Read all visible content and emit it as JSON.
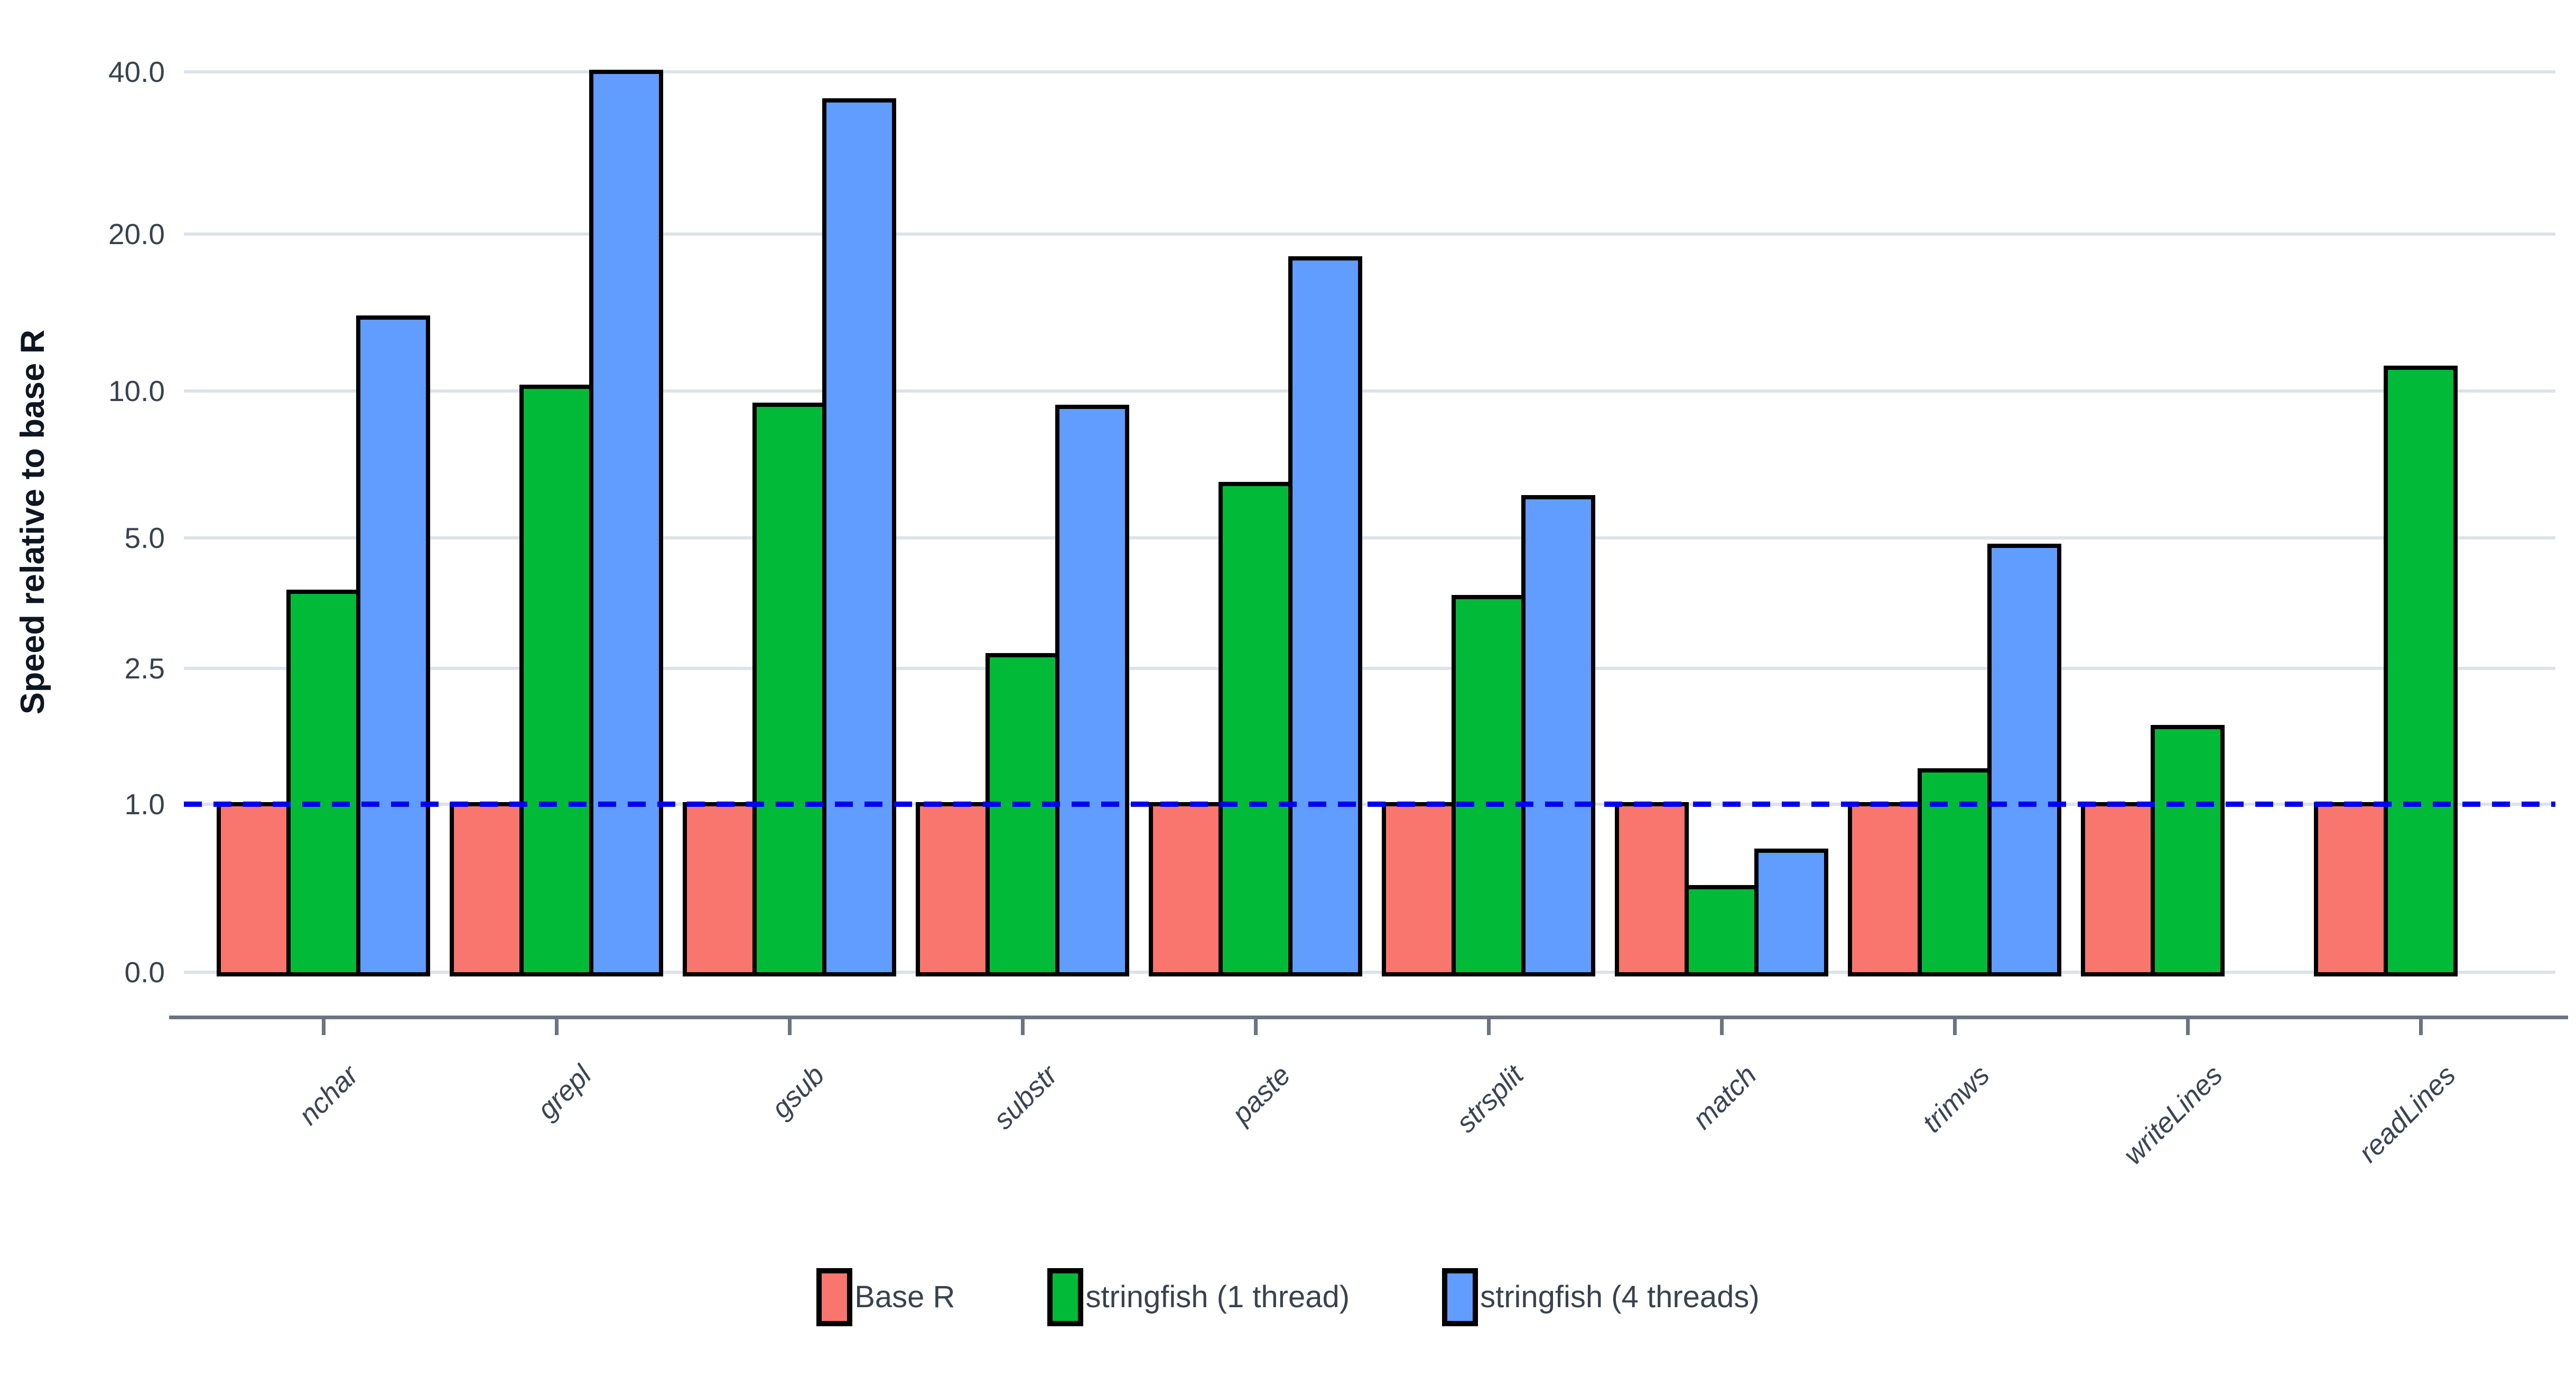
{
  "chart_data": {
    "type": "bar",
    "title": "",
    "xlabel": "",
    "ylabel": "Speed relative to base R",
    "categories": [
      "nchar",
      "grepl",
      "gsub",
      "substr",
      "paste",
      "strsplit",
      "match",
      "trimws",
      "writeLines",
      "readLines"
    ],
    "series": [
      {
        "name": "Base R",
        "color": "#F8766D",
        "values": [
          1,
          1,
          1,
          1,
          1,
          1,
          1,
          1,
          1,
          1
        ]
      },
      {
        "name": "stringfish (1 thread)",
        "color": "#00BA38",
        "values": [
          3.8,
          10.2,
          9.4,
          2.7,
          6.5,
          3.7,
          0.42,
          1.3,
          1.75,
          11.1
        ]
      },
      {
        "name": "stringfish (4 threads)",
        "color": "#619CFF",
        "values": [
          13.9,
          40,
          35.5,
          9.3,
          18,
          6.1,
          0.65,
          4.8,
          null,
          null
        ]
      }
    ],
    "y_axis": {
      "scale": "log1p",
      "range": [
        0,
        43
      ],
      "ticks": [
        {
          "value": 0,
          "label": "0.0"
        },
        {
          "value": 1,
          "label": "1.0"
        },
        {
          "value": 2.5,
          "label": "2.5"
        },
        {
          "value": 5,
          "label": "5.0"
        },
        {
          "value": 10,
          "label": "10.0"
        },
        {
          "value": 20,
          "label": "20.0"
        },
        {
          "value": 40,
          "label": "40.0"
        }
      ]
    },
    "reference_line": {
      "value": 1.0,
      "style": "dashed",
      "color": "#0000F2"
    },
    "grid": "horizontal",
    "legend_position": "bottom"
  },
  "styles": {
    "background": "#FFFFFF",
    "gridline_color": "#DCE2EA",
    "axis_color": "#6A7482",
    "bar_outline": "#000000",
    "ytick_text_color": "#39424E",
    "xtick_text_color": "#3A4454",
    "axis_title_color": "#0E1621",
    "legend_text_color": "#39424E"
  }
}
